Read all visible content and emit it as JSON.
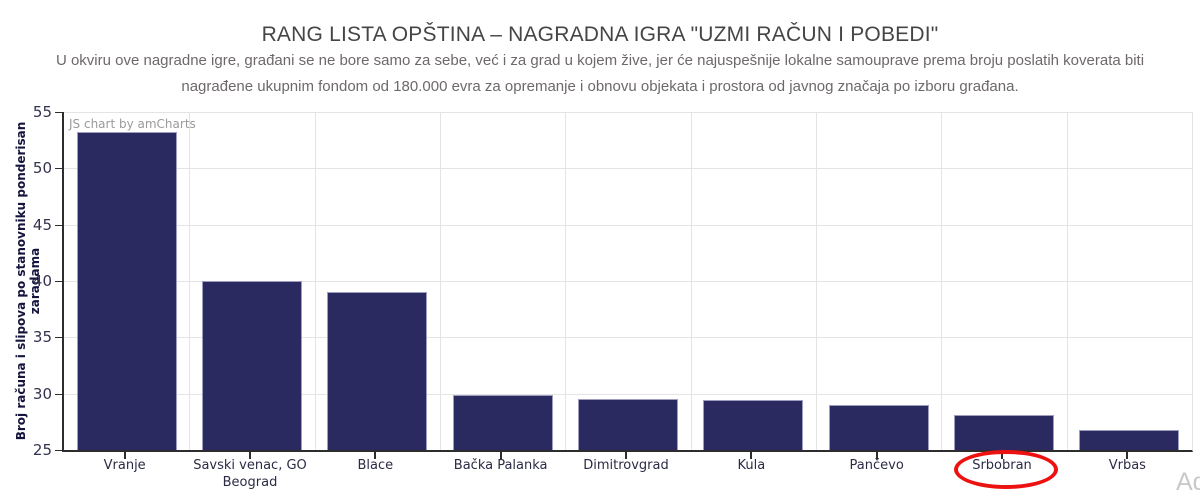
{
  "header": {
    "title": "RANG LISTA OPŠTINA – NAGRADNA IGRA \"UZMI RAČUN I POBEDI\"",
    "subtitle_line1": "U okviru ove nagradne igre, građani se ne bore samo za sebe, već i za grad u kojem žive, jer će najuspešnije lokalne samouprave prema broju poslatih koverata biti",
    "subtitle_line2": "nagrađene ukupnim fondom od 180.000 evra za opremanje i obnovu objekata i prostora od javnog značaja po izboru građana."
  },
  "chart_data": {
    "type": "bar",
    "title": "RANG LISTA OPŠTINA – NAGRADNA IGRA \"UZMI RAČUN I POBEDI\"",
    "categories": [
      "Vranje",
      "Savski venac, GO Beograd",
      "Blace",
      "Bačka Palanka",
      "Dimitrovgrad",
      "Kula",
      "Pančevo",
      "Srbobran",
      "Vrbas"
    ],
    "values": [
      53.2,
      40.0,
      39.0,
      29.9,
      29.5,
      29.4,
      29.0,
      28.1,
      26.8
    ],
    "xlabel": "",
    "ylabel": "Broj računa i slipova po stanovniku ponderisan zaradama",
    "ylim": [
      25,
      55
    ],
    "yticks": [
      25,
      30,
      35,
      40,
      45,
      50,
      55
    ],
    "grid": true,
    "legend": "none",
    "bar_color": "#2b2a60",
    "bar_border_color": "#9d9dc2",
    "grid_color": "#e4e4e4",
    "axis_color": "#2d2d2d",
    "tick_label_color": "#33334d",
    "annotation": {
      "type": "ellipse",
      "target_category": "Srbobran",
      "color": "#ed1212"
    }
  },
  "watermarks": {
    "amcharts": "JS chart by amCharts",
    "corner": "Ad"
  },
  "colors": {
    "title_text": "#454545",
    "subtitle_text": "#6e6869"
  }
}
